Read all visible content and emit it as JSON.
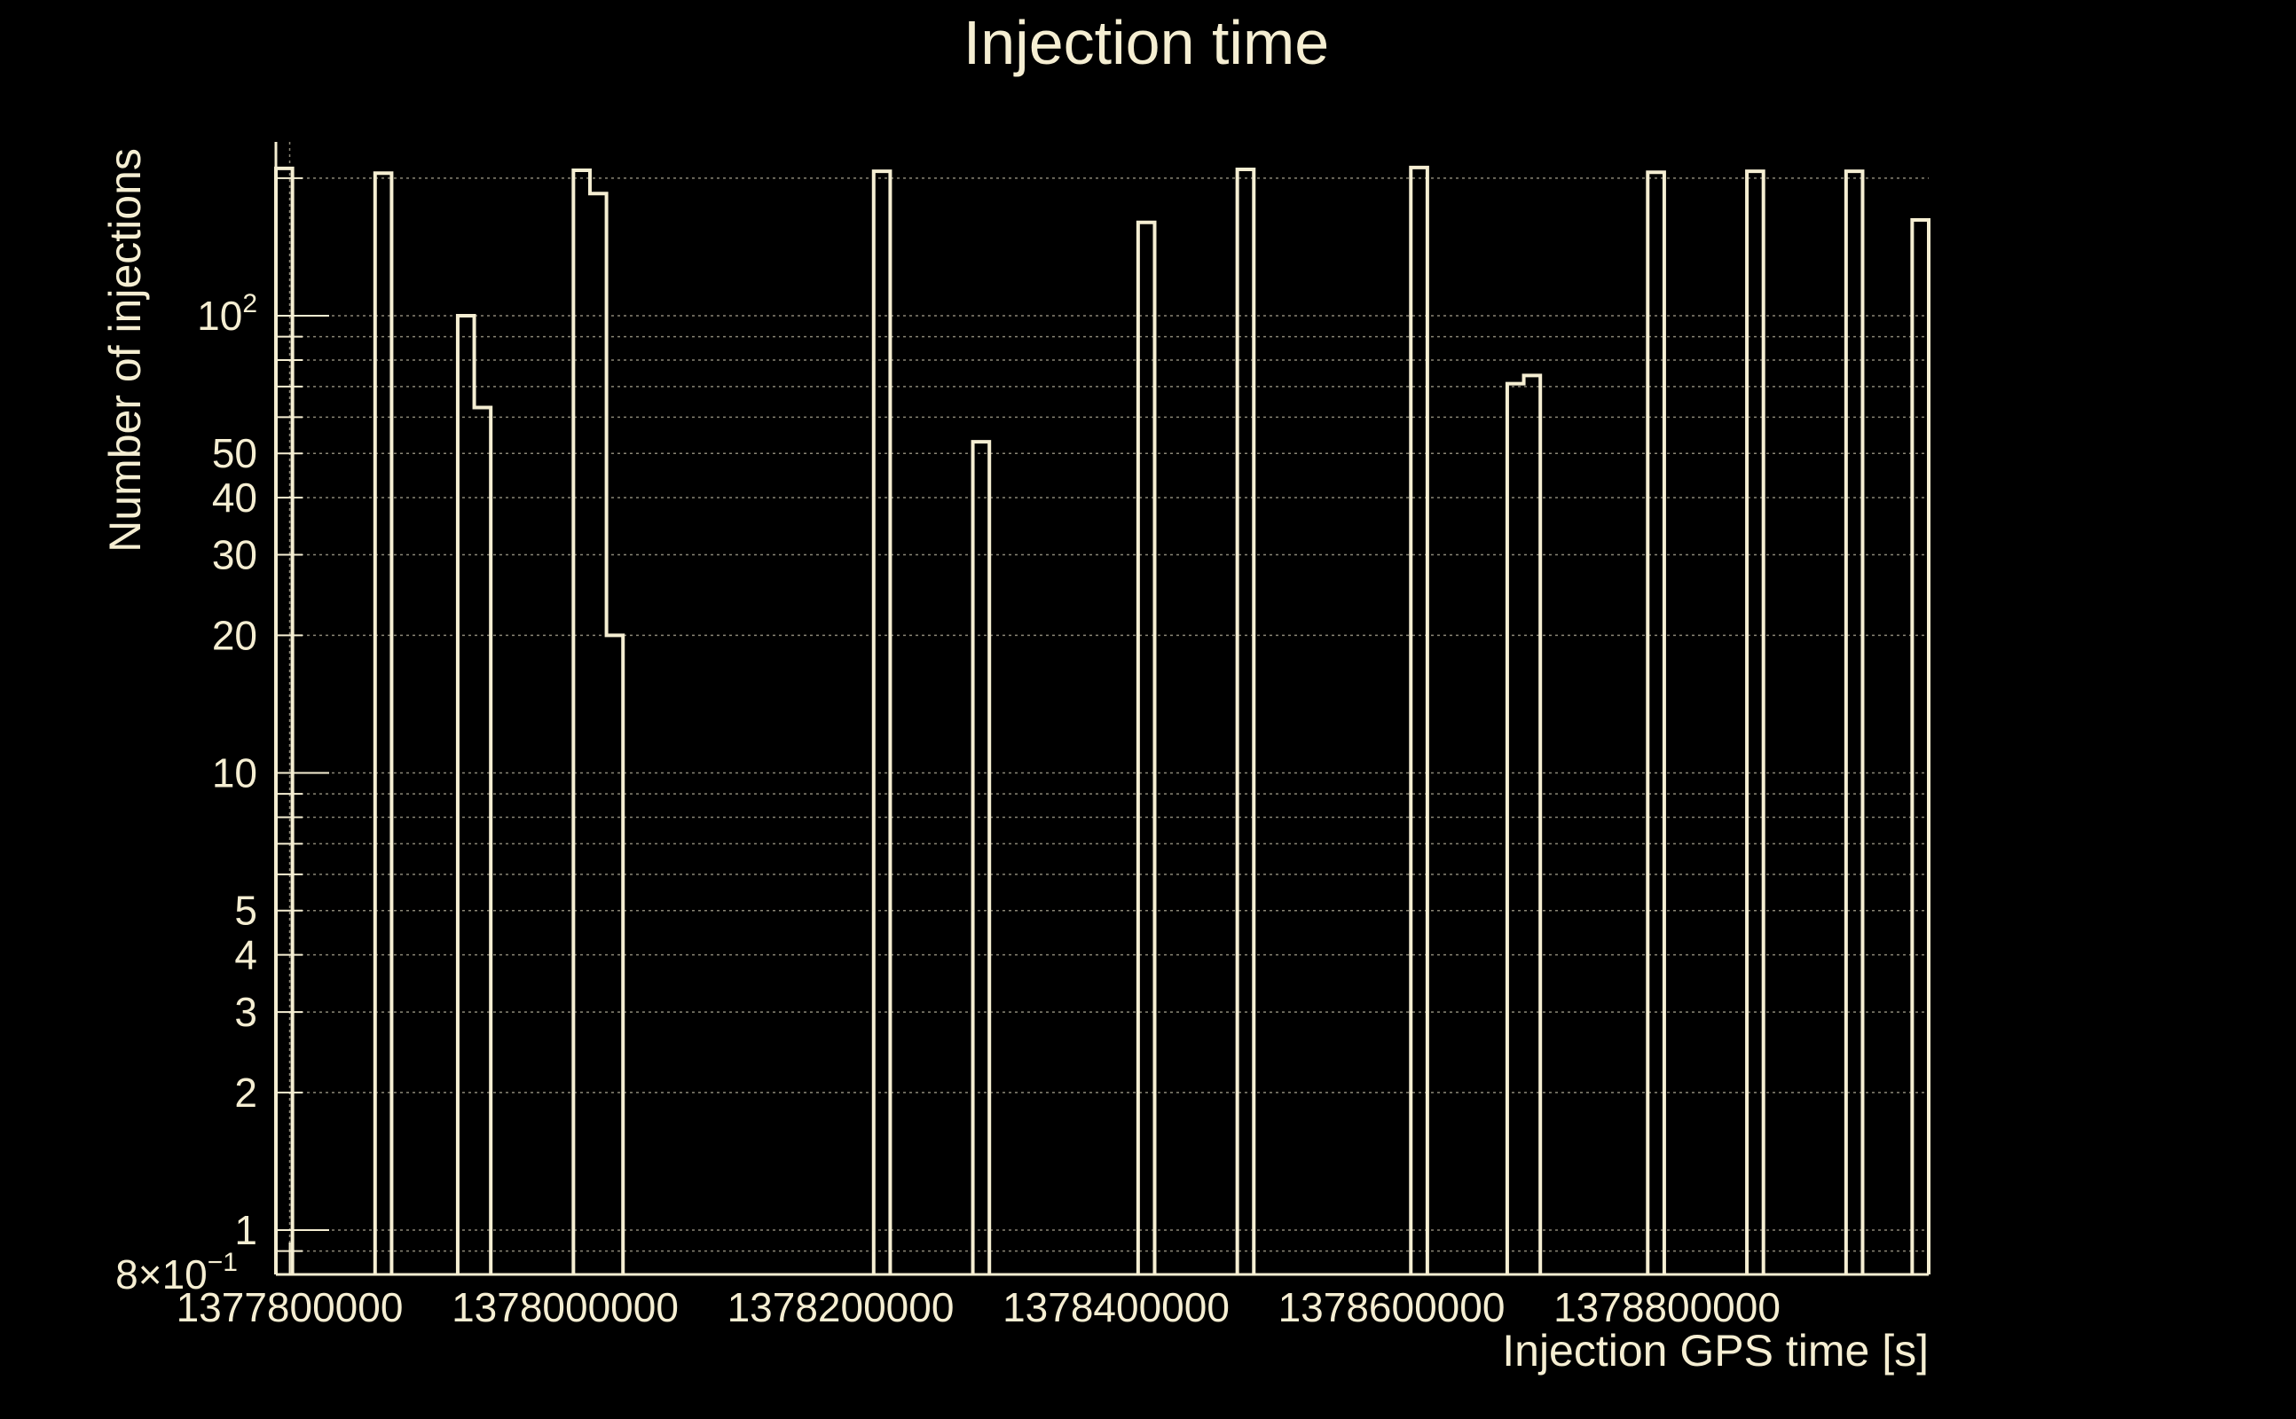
{
  "chart_data": {
    "type": "histogram",
    "title": "Injection time",
    "xlabel": "Injection GPS time [s]",
    "ylabel": "Number of injections",
    "yscale": "log",
    "xlim": [
      1377790000,
      1378990000
    ],
    "ylim": [
      0.8,
      240
    ],
    "grid": true,
    "colors": {
      "background": "#000000",
      "foreground": "#f5eed2"
    },
    "x_ticks": [
      {
        "value": 1377800000,
        "label": "1377800000"
      },
      {
        "value": 1378000000,
        "label": "1378000000"
      },
      {
        "value": 1378200000,
        "label": "1378200000"
      },
      {
        "value": 1378400000,
        "label": "1378400000"
      },
      {
        "value": 1378600000,
        "label": "1378600000"
      },
      {
        "value": 1378800000,
        "label": "1378800000"
      }
    ],
    "y_ticks": [
      {
        "value": 1,
        "label": "1"
      },
      {
        "value": 2,
        "label": "2"
      },
      {
        "value": 3,
        "label": "3"
      },
      {
        "value": 4,
        "label": "4"
      },
      {
        "value": 5,
        "label": "5"
      },
      {
        "value": 10,
        "label": "10"
      },
      {
        "value": 20,
        "label": "20"
      },
      {
        "value": 30,
        "label": "30"
      },
      {
        "value": 40,
        "label": "40"
      },
      {
        "value": 50,
        "label": "50"
      }
    ],
    "y_tick_power": {
      "value": 100,
      "base": "10",
      "exponent": "2"
    },
    "y_tick_min": {
      "value": 0.8,
      "mantissa": "8×10",
      "exponent": "−1"
    },
    "bins": [
      {
        "x0": 1377790000,
        "x1": 1377802000,
        "y": 210
      },
      {
        "x0": 1377862000,
        "x1": 1377874000,
        "y": 205
      },
      {
        "x0": 1377922000,
        "x1": 1377934000,
        "y": 100
      },
      {
        "x0": 1377934000,
        "x1": 1377946000,
        "y": 63
      },
      {
        "x0": 1378006000,
        "x1": 1378018000,
        "y": 208
      },
      {
        "x0": 1378018000,
        "x1": 1378030000,
        "y": 185
      },
      {
        "x0": 1378030000,
        "x1": 1378042000,
        "y": 20
      },
      {
        "x0": 1378224000,
        "x1": 1378236000,
        "y": 207
      },
      {
        "x0": 1378296000,
        "x1": 1378308000,
        "y": 53
      },
      {
        "x0": 1378416000,
        "x1": 1378428000,
        "y": 160
      },
      {
        "x0": 1378488000,
        "x1": 1378500000,
        "y": 209
      },
      {
        "x0": 1378614000,
        "x1": 1378626000,
        "y": 211
      },
      {
        "x0": 1378684000,
        "x1": 1378696000,
        "y": 71
      },
      {
        "x0": 1378696000,
        "x1": 1378708000,
        "y": 74
      },
      {
        "x0": 1378786000,
        "x1": 1378798000,
        "y": 206
      },
      {
        "x0": 1378858000,
        "x1": 1378870000,
        "y": 207
      },
      {
        "x0": 1378930000,
        "x1": 1378942000,
        "y": 207
      },
      {
        "x0": 1378978000,
        "x1": 1378990000,
        "y": 162
      }
    ]
  }
}
